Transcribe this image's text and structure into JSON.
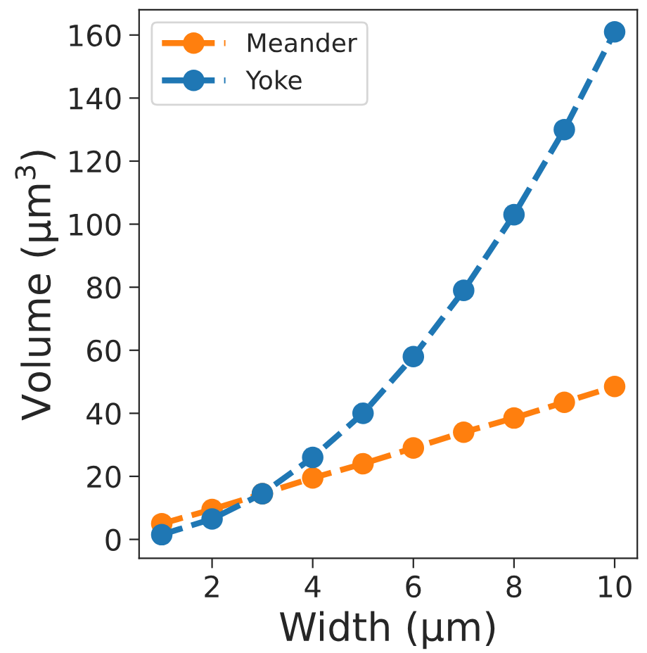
{
  "chart_data": {
    "type": "line",
    "xlabel": "Width (μm)",
    "ylabel": "Volume (μm$^{3}$)",
    "x": [
      1,
      2,
      3,
      4,
      5,
      6,
      7,
      8,
      9,
      10
    ],
    "series": [
      {
        "name": "Meander",
        "color": "#ff7f0e",
        "values": [
          5,
          9.5,
          14.5,
          19.5,
          24,
          29,
          34,
          38.5,
          43.5,
          48.5
        ]
      },
      {
        "name": "Yoke",
        "color": "#1f77b4",
        "values": [
          1.5,
          6.5,
          14.5,
          26,
          40,
          58,
          79,
          103,
          130,
          161
        ]
      }
    ],
    "xlim": [
      0.55,
      10.45
    ],
    "ylim": [
      -6,
      168
    ],
    "xticks": [
      2,
      4,
      6,
      8,
      10
    ],
    "yticks": [
      0,
      20,
      40,
      60,
      80,
      100,
      120,
      140,
      160
    ],
    "marker": "circle",
    "line_style": "dashed",
    "legend": "top left",
    "grid": false
  }
}
